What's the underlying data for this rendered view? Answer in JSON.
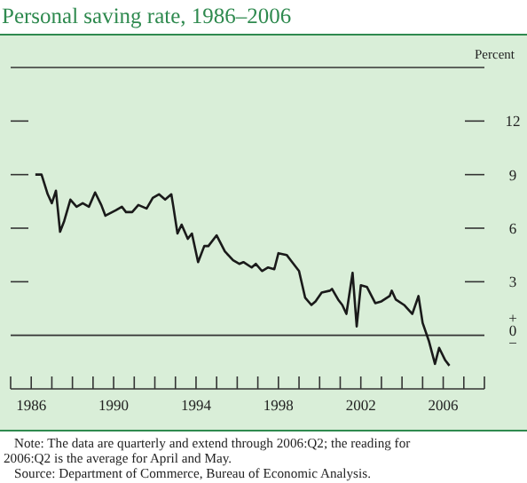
{
  "chart_data": {
    "type": "line",
    "title": "Personal saving rate, 1986–2006",
    "ylabel": "Percent",
    "x": [
      1986.2,
      1986.5,
      1986.8,
      1987.0,
      1987.2,
      1987.4,
      1987.6,
      1987.9,
      1988.2,
      1988.5,
      1988.8,
      1989.1,
      1989.4,
      1989.6,
      1990.1,
      1990.4,
      1990.6,
      1990.9,
      1991.2,
      1991.6,
      1991.9,
      1992.2,
      1992.5,
      1992.8,
      1992.9,
      1993.1,
      1993.3,
      1993.6,
      1993.8,
      1994.1,
      1994.4,
      1994.6,
      1995.0,
      1995.4,
      1995.8,
      1996.1,
      1996.3,
      1996.7,
      1996.9,
      1997.2,
      1997.5,
      1997.8,
      1998.0,
      1998.4,
      1998.6,
      1999.0,
      1999.3,
      1999.6,
      1999.8,
      2000.1,
      2000.5,
      2000.6,
      2000.9,
      2001.1,
      2001.3,
      2001.6,
      2001.8,
      2002.0,
      2002.3,
      2002.7,
      2003.0,
      2003.4,
      2003.5,
      2003.7,
      2004.1,
      2004.5,
      2004.8,
      2005.0,
      2005.3,
      2005.6,
      2005.8,
      2006.1,
      2006.3
    ],
    "series": [
      {
        "color": "#1a1a1a",
        "values": [
          9.0,
          9.0,
          7.9,
          7.4,
          8.1,
          5.8,
          6.4,
          7.6,
          7.2,
          7.4,
          7.2,
          8.0,
          7.3,
          6.7,
          7.0,
          7.2,
          6.9,
          6.9,
          7.3,
          7.1,
          7.7,
          7.9,
          7.6,
          7.9,
          7.2,
          5.7,
          6.2,
          5.4,
          5.7,
          4.1,
          5.0,
          5.0,
          5.6,
          4.7,
          4.2,
          4.0,
          4.1,
          3.8,
          4.0,
          3.6,
          3.8,
          3.7,
          4.6,
          4.5,
          4.2,
          3.6,
          2.1,
          1.7,
          1.9,
          2.4,
          2.5,
          2.6,
          2.0,
          1.7,
          1.2,
          3.5,
          0.5,
          2.8,
          2.7,
          1.8,
          1.9,
          2.2,
          2.5,
          2.0,
          1.7,
          1.2,
          2.2,
          0.7,
          -0.3,
          -1.6,
          -0.7,
          -1.4,
          -1.7
        ]
      }
    ],
    "xlim": [
      1985,
      2008
    ],
    "xticks": [
      {
        "value": 1985,
        "label": null
      },
      {
        "value": 1986,
        "label": "1986"
      },
      {
        "value": 1987,
        "label": null
      },
      {
        "value": 1988,
        "label": null
      },
      {
        "value": 1989,
        "label": null
      },
      {
        "value": 1990,
        "label": "1990"
      },
      {
        "value": 1991,
        "label": null
      },
      {
        "value": 1992,
        "label": null
      },
      {
        "value": 1993,
        "label": null
      },
      {
        "value": 1994,
        "label": "1994"
      },
      {
        "value": 1995,
        "label": null
      },
      {
        "value": 1996,
        "label": null
      },
      {
        "value": 1997,
        "label": null
      },
      {
        "value": 1998,
        "label": "1998"
      },
      {
        "value": 1999,
        "label": null
      },
      {
        "value": 2000,
        "label": null
      },
      {
        "value": 2001,
        "label": null
      },
      {
        "value": 2002,
        "label": "2002"
      },
      {
        "value": 2003,
        "label": null
      },
      {
        "value": 2004,
        "label": null
      },
      {
        "value": 2005,
        "label": null
      },
      {
        "value": 2006,
        "label": "2006"
      },
      {
        "value": 2007,
        "label": null
      },
      {
        "value": 2008,
        "label": null
      }
    ],
    "ylim": [
      -3,
      15
    ],
    "yticks": [
      {
        "value": 0,
        "label": "+ 0 −"
      },
      3,
      6,
      9,
      12
    ],
    "ref_lines": [
      {
        "axis": "y",
        "value": 0
      }
    ],
    "grid": false,
    "marker": "none",
    "line_style": "solid",
    "annotations": [
      "Note: The data are quarterly and extend through 2006:Q2; the reading for 2006:Q2 is the average for April and May.",
      "Source: Department of Commerce, Bureau of Economic Analysis."
    ]
  }
}
